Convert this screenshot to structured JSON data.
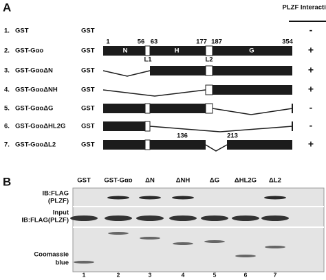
{
  "panel_a": {
    "label": "A",
    "interaction_header": "PLZF Interaction",
    "rows": [
      {
        "number": "1.",
        "name": "GST",
        "construct": "GST",
        "result": "-"
      },
      {
        "number": "2.",
        "name": "GST-Gαo",
        "construct": "GST",
        "result": "+"
      },
      {
        "number": "3.",
        "name": "GST-GαoΔN",
        "construct": "GST",
        "result": "+"
      },
      {
        "number": "4.",
        "name": "GST-GαoΔNH",
        "construct": "GST",
        "result": "+"
      },
      {
        "number": "5.",
        "name": "GST-GαoΔG",
        "construct": "GST",
        "result": "-"
      },
      {
        "number": "6.",
        "name": "GST-GαoΔHL2G",
        "construct": "GST",
        "result": "-"
      },
      {
        "number": "7.",
        "name": "GST-GαoΔL2",
        "construct": "GST",
        "result": "+"
      }
    ],
    "domains": [
      "N",
      "H",
      "G"
    ],
    "residues": [
      "1",
      "56",
      "63",
      "177",
      "187",
      "354"
    ],
    "loops": [
      "L1",
      "L2"
    ],
    "deletion_residues": [
      "136",
      "213"
    ]
  },
  "panel_b": {
    "label": "B",
    "lanes": [
      "GST",
      "GST-Gαo",
      "ΔN",
      "ΔNH",
      "ΔG",
      "ΔHL2G",
      "ΔL2"
    ],
    "blot_labels": [
      "IB:FLAG",
      "(PLZF)",
      "Input",
      "IB:FLAG(PLZF)",
      "Coomassie",
      "blue"
    ],
    "lane_numbers": [
      "1",
      "2",
      "3",
      "4",
      "5",
      "6",
      "7"
    ]
  }
}
